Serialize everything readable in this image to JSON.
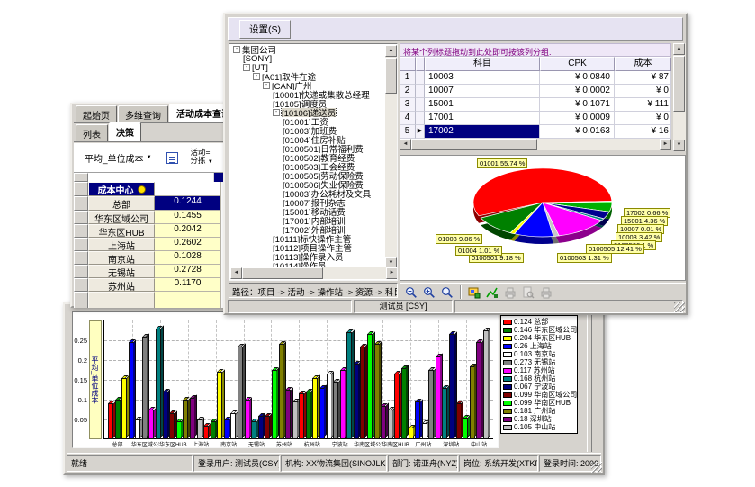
{
  "front_window": {
    "menu": {
      "settings_label": "设置(S)"
    },
    "tree": {
      "items": [
        {
          "label": "集团公司",
          "depth": 0,
          "exp": true
        },
        {
          "label": "[SONY]",
          "depth": 1
        },
        {
          "label": "[UT]",
          "depth": 1,
          "exp": true
        },
        {
          "label": "[A01]取件在途",
          "depth": 2,
          "exp": true
        },
        {
          "label": "[CAN]广州",
          "depth": 3,
          "exp": true
        },
        {
          "label": "[10001]快递或集散总经理",
          "depth": 4
        },
        {
          "label": "[10105]调度员",
          "depth": 4
        },
        {
          "label": "[10106]递送员",
          "depth": 4,
          "exp": true,
          "selected": true
        },
        {
          "label": "[01001]工资",
          "depth": 5
        },
        {
          "label": "[01003]加班费",
          "depth": 5
        },
        {
          "label": "[01004]住房补贴",
          "depth": 5
        },
        {
          "label": "[0100501]日常福利费",
          "depth": 5
        },
        {
          "label": "[0100502]教育经费",
          "depth": 5
        },
        {
          "label": "[0100503]工会经费",
          "depth": 5
        },
        {
          "label": "[0100505]劳动保险费",
          "depth": 5
        },
        {
          "label": "[0100506]失业保险费",
          "depth": 5
        },
        {
          "label": "[10003]办公耗材及文具",
          "depth": 5
        },
        {
          "label": "[10007]报刊杂志",
          "depth": 5
        },
        {
          "label": "[15001]移动话费",
          "depth": 5
        },
        {
          "label": "[17001]内部培训",
          "depth": 5
        },
        {
          "label": "[17002]外部培训",
          "depth": 5
        },
        {
          "label": "[10111]标快操作主管",
          "depth": 4
        },
        {
          "label": "[10112]项目操作主管",
          "depth": 4
        },
        {
          "label": "[10113]操作录入员",
          "depth": 4
        },
        {
          "label": "[10114]操作员",
          "depth": 4
        },
        {
          "label": "[10117]标快客服或集散经理",
          "depth": 4
        }
      ]
    },
    "right_panel": {
      "group_hint": "将某个列标题拖动到此处即可按该列分组.",
      "table": {
        "columns": [
          "科目",
          "CPK",
          "成本"
        ],
        "rows": [
          {
            "num": "1",
            "subject": "10003",
            "cpk": "¥ 0.0840",
            "cost": "¥ 87"
          },
          {
            "num": "2",
            "subject": "10007",
            "cpk": "¥ 0.0002",
            "cost": "¥ 0"
          },
          {
            "num": "3",
            "subject": "15001",
            "cpk": "¥ 0.1071",
            "cost": "¥ 111"
          },
          {
            "num": "4",
            "subject": "17001",
            "cpk": "¥ 0.0009",
            "cost": "¥ 0"
          },
          {
            "num": "5",
            "subject": "17002",
            "cpk": "¥ 0.0163",
            "cost": "¥ 16",
            "selected": true
          }
        ]
      },
      "toolbar_icons": [
        "zoom-out",
        "zoom-in",
        "zoom-mode",
        "save-image",
        "edit-chart",
        "print",
        "print-preview",
        "print-setup"
      ]
    },
    "path_bar": "路径：项目 -> 活动 -> 操作站 -> 资源 -> 科目",
    "status_text": "测试员 [CSY]"
  },
  "middle_window": {
    "tabs": [
      {
        "label": "起始页",
        "active": false
      },
      {
        "label": "多维查询",
        "active": false
      },
      {
        "label": "活动成本查询",
        "active": true
      }
    ],
    "subtabs": [
      {
        "label": "列表",
        "active": false
      },
      {
        "label": "决策",
        "active": true
      }
    ],
    "measure_dropdown": "平均_单位成本",
    "activity_filter": {
      "line1": "活动=",
      "line2": "分拣"
    },
    "grid": {
      "header": "成本中心",
      "rows": [
        {
          "label": "总部",
          "value": "0.1244",
          "selected": true
        },
        {
          "label": "华东区域公司",
          "value": "0.1455"
        },
        {
          "label": "华东区HUB",
          "value": "0.2042"
        },
        {
          "label": "上海站",
          "value": "0.2602"
        },
        {
          "label": "南京站",
          "value": "0.1028"
        },
        {
          "label": "无锡站",
          "value": "0.2728"
        },
        {
          "label": "苏州站",
          "value": "0.1170"
        }
      ]
    }
  },
  "main_window": {
    "status_segments": [
      "就绪",
      "登录用户: 测试员(CSY)",
      "机构: XX物流集团(SINOJLKY)",
      "部门: 诺亚舟(NYZ)",
      "岗位: 系统开发(XTKF)",
      "登录时间: 2006-4-17 11:53:33"
    ]
  },
  "colors": {
    "selection_navy": "#000080",
    "menu_lavender": "#e6e3f2",
    "hint_purple": "#800080",
    "cell_yellow": "#ffffc8",
    "pie_label_box": "#ffffa8"
  },
  "chart_data": [
    {
      "type": "pie",
      "title": "",
      "start_angle_deg": 247,
      "legend_position": "floating-labels",
      "slices": [
        {
          "code": "01001",
          "pct": "55.74",
          "color": "#ff0000"
        },
        {
          "code": "17002",
          "pct": "0.66",
          "color": "#00ff00"
        },
        {
          "code": "15001",
          "pct": "4.36",
          "color": "#00b000"
        },
        {
          "code": "10007",
          "pct": "0.01",
          "color": "#ff8000"
        },
        {
          "code": "10003",
          "pct": "3.42",
          "color": "#000090"
        },
        {
          "code": "0100506",
          "pct": "1",
          "color": "#008080"
        },
        {
          "code": "0100505",
          "pct": "12.41",
          "color": "#ff00ff"
        },
        {
          "code": "0100503",
          "pct": "1.31",
          "color": "#c8c8c8"
        },
        {
          "code": "0100501",
          "pct": "9.18",
          "color": "#0000ff"
        },
        {
          "code": "01004",
          "pct": "1.01",
          "color": "#ffff00"
        },
        {
          "code": "01003",
          "pct": "9.86",
          "color": "#008000"
        }
      ]
    },
    {
      "type": "bar",
      "title": "",
      "ylabel": "平均_单位成本",
      "yticks": [
        0.05,
        0.1,
        0.15,
        0.2,
        0.25
      ],
      "ylim": [
        0,
        0.3
      ],
      "grid": true,
      "legend_position": "right",
      "categories": [
        "总部",
        "华东区域公司",
        "华东区HUB",
        "上海站",
        "南京站",
        "无锡站",
        "苏州站",
        "杭州站",
        "宁波站",
        "华南区域公司",
        "华南区HUB",
        "广州站",
        "深圳站",
        "中山站"
      ],
      "legend": [
        {
          "value": "0.124",
          "label": "总部",
          "color": "#ff0000"
        },
        {
          "value": "0.146",
          "label": "华东区域公司",
          "color": "#008000"
        },
        {
          "value": "0.204",
          "label": "华东区HUB",
          "color": "#ffff00"
        },
        {
          "value": "0.26",
          "label": "上海站",
          "color": "#0000ff"
        },
        {
          "value": "0.103",
          "label": "南京站",
          "color": "#ffffff"
        },
        {
          "value": "0.273",
          "label": "无锡站",
          "color": "#808080"
        },
        {
          "value": "0.117",
          "label": "苏州站",
          "color": "#ff00ff"
        },
        {
          "value": "0.168",
          "label": "杭州站",
          "color": "#008080"
        },
        {
          "value": "0.067",
          "label": "宁波站",
          "color": "#000080"
        },
        {
          "value": "0.099",
          "label": "华南区域公司",
          "color": "#800000"
        },
        {
          "value": "0.099",
          "label": "华南区HUB",
          "color": "#00ff00"
        },
        {
          "value": "0.181",
          "label": "广州站",
          "color": "#808000"
        },
        {
          "value": "0.18",
          "label": "深圳站",
          "color": "#800080"
        },
        {
          "value": "0.105",
          "label": "中山站",
          "color": "#c0c0c0"
        }
      ],
      "values": [
        0.09,
        0.1,
        0.155,
        0.245,
        0.05,
        0.26,
        0.075,
        0.28,
        0.12,
        0.065,
        0.045,
        0.1,
        0.105,
        0.05,
        0.035,
        0.045,
        0.17,
        0.05,
        0.065,
        0.235,
        0.1,
        0.045,
        0.06,
        0.06,
        0.175,
        0.24,
        0.125,
        0.095,
        0.115,
        0.12,
        0.155,
        0.13,
        0.165,
        0.145,
        0.175,
        0.27,
        0.19,
        0.235,
        0.265,
        0.24,
        0.085,
        0.075,
        0.165,
        0.18,
        0.03,
        0.095,
        0.04,
        0.175,
        0.21,
        0.13,
        0.265,
        0.09,
        0.055,
        0.185,
        0.245,
        0.275
      ]
    }
  ]
}
